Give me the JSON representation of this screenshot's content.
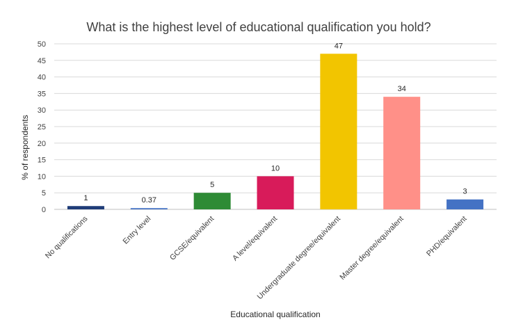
{
  "chart_data": {
    "type": "bar",
    "title": "What is the highest level of educational qualification you hold?",
    "xlabel": "Educational qualification",
    "ylabel": "% of respondents",
    "categories": [
      "No qualifications",
      "Entry level",
      "GCSE/equivalent",
      "A level/equivalent",
      "Undergraduate degree/equivalent",
      "Master degree/equivalent",
      "PHD/equivalent"
    ],
    "values": [
      1,
      0.37,
      5,
      10,
      47,
      34,
      3
    ],
    "value_labels": [
      "1",
      "0.37",
      "5",
      "10",
      "47",
      "34",
      "3"
    ],
    "colors": [
      "#1f3c78",
      "#4472c4",
      "#2e8b35",
      "#d81b5a",
      "#f2c500",
      "#ff9088",
      "#4472c4"
    ],
    "ylim": [
      0,
      50
    ],
    "yticks": [
      0,
      5,
      10,
      15,
      20,
      25,
      30,
      35,
      40,
      45,
      50
    ],
    "grid": true,
    "legend": "none"
  }
}
